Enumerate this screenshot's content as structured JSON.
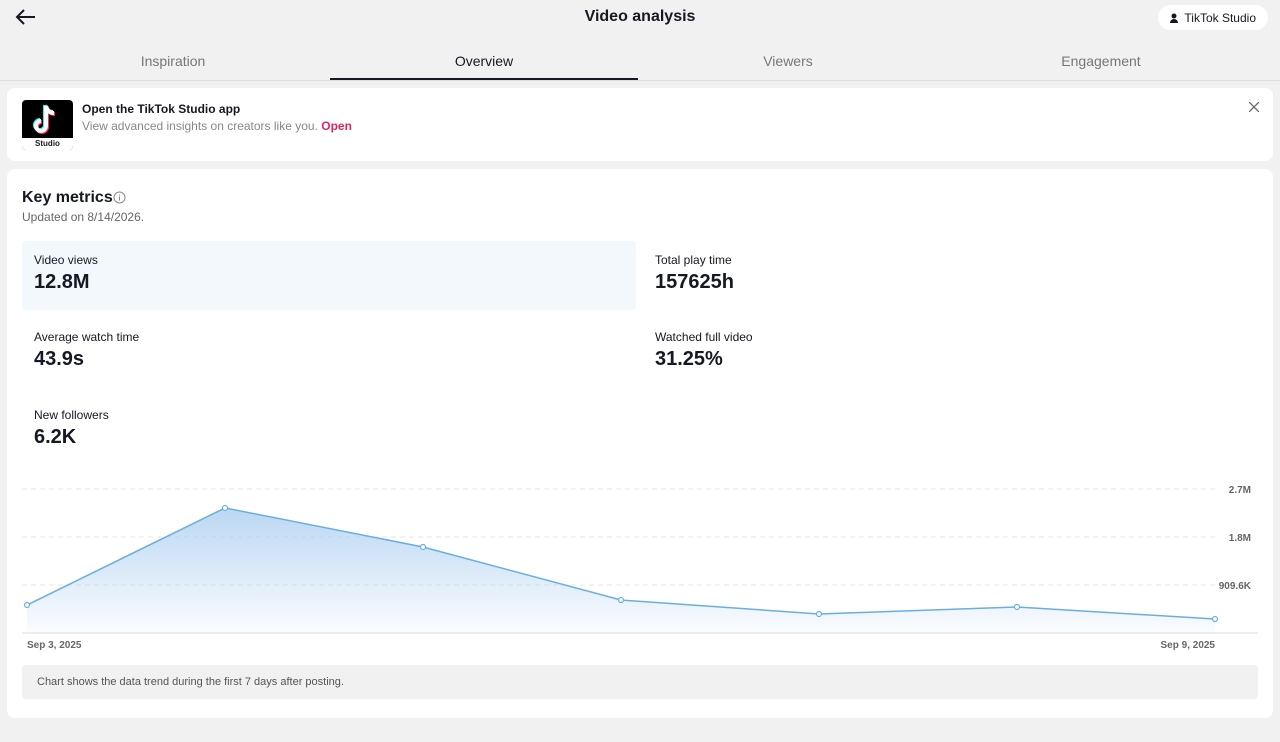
{
  "header": {
    "title": "Video analysis",
    "button": "TikTok Studio"
  },
  "tabs": [
    "Inspiration",
    "Overview",
    "Viewers",
    "Engagement"
  ],
  "banner": {
    "logo_text": "Studio",
    "title": "Open the TikTok Studio app",
    "text": "View advanced insights on creators like you.",
    "link": "Open"
  },
  "metrics": {
    "title": "Key metrics",
    "updated": "Updated on 8/14/2026.",
    "items": [
      {
        "label": "Video views",
        "value": "12.8M"
      },
      {
        "label": "Total play time",
        "value": "157625h"
      },
      {
        "label": "Average watch time",
        "value": "43.9s"
      },
      {
        "label": "Watched full video",
        "value": "31.25%"
      },
      {
        "label": "New followers",
        "value": "6.2K"
      }
    ]
  },
  "chart_data": {
    "type": "line",
    "categories": [
      "Sep 3, 2025",
      null,
      null,
      null,
      null,
      null,
      "Sep 9, 2025"
    ],
    "values": [
      530000,
      2370000,
      1630000,
      625000,
      360000,
      493000,
      265000
    ],
    "color": "#6aaee0",
    "ylim": [
      0,
      2728800
    ],
    "yticks": [
      {
        "value": 909600,
        "label": "909.6K"
      },
      {
        "value": 1819200,
        "label": "1.8M"
      },
      {
        "value": 2728800,
        "label": "2.7M"
      }
    ],
    "grid": true
  },
  "note": "Chart shows the data trend during the first 7 days after posting."
}
